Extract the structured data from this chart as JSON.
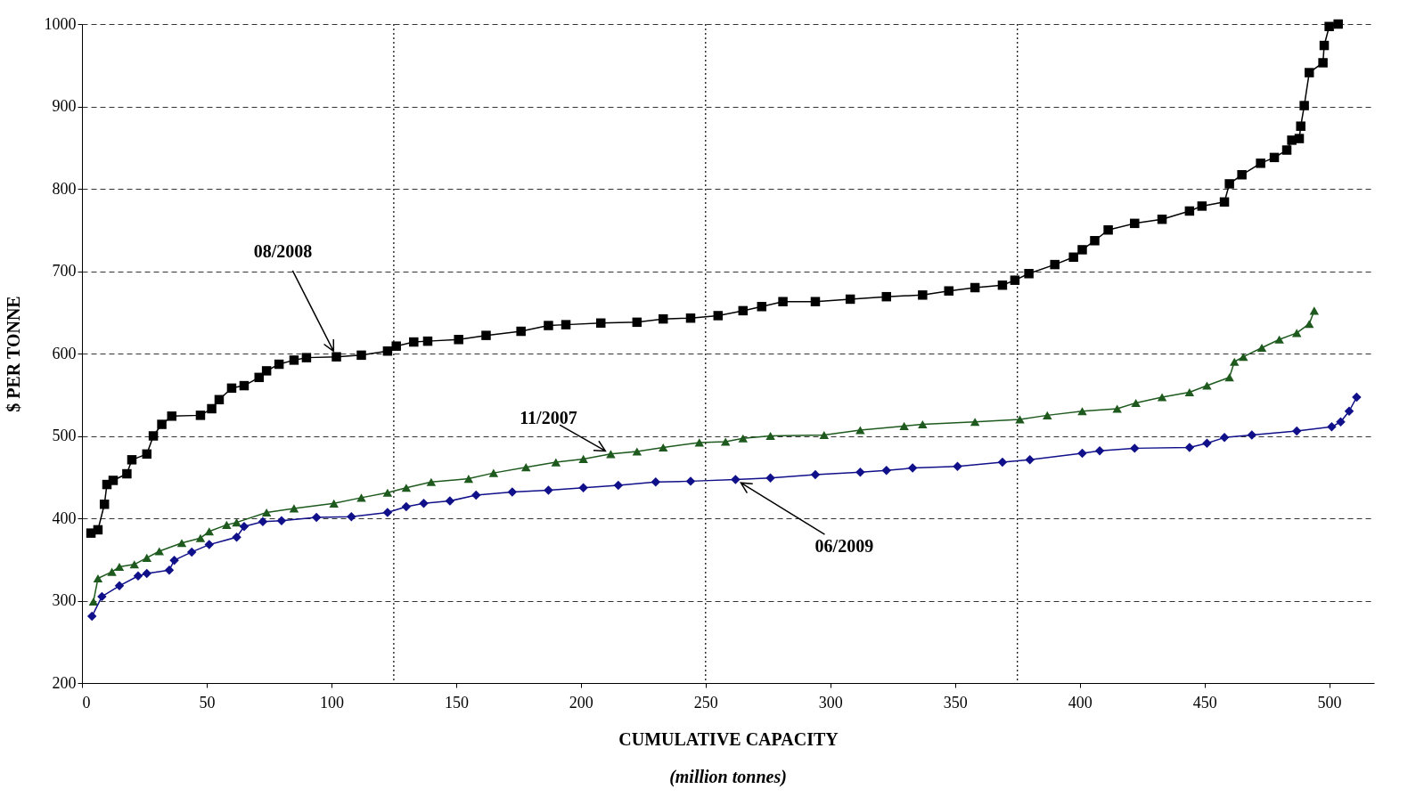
{
  "chart_data": {
    "type": "line",
    "xlabel": "CUMULATIVE CAPACITY",
    "ylabel": "$ PER TONNE",
    "xlim": [
      0,
      518
    ],
    "ylim": [
      200,
      1000
    ],
    "xticks": [
      0,
      50,
      100,
      150,
      200,
      250,
      300,
      350,
      400,
      450,
      500
    ],
    "yticks": [
      200,
      300,
      400,
      500,
      600,
      700,
      800,
      900,
      {
        "value": 1000,
        "label": "1000"
      }
    ],
    "grid": "y",
    "ref_lines": [
      {
        "axis": "x",
        "value": 125,
        "line_style": "dotted",
        "color": "#000000"
      },
      {
        "axis": "x",
        "value": 250,
        "line_style": "dotted",
        "color": "#000000"
      },
      {
        "axis": "x",
        "value": 375,
        "line_style": "dotted",
        "color": "#000000"
      }
    ],
    "annotations": [
      {
        "text": "08/2008",
        "x": 102,
        "y": 596
      },
      {
        "text": "11/2007",
        "x": 212,
        "y": 478
      },
      {
        "text": "06/2009",
        "x": 262,
        "y": 447
      },
      "(million tonnes)"
    ],
    "series": [
      {
        "color": "#000000",
        "marker": "square",
        "x": [
          3.6,
          6.4,
          9,
          10,
          12.5,
          18,
          20,
          26,
          28.6,
          32,
          36,
          47.5,
          52,
          55,
          60,
          65,
          71,
          74,
          79,
          85,
          90,
          102,
          112,
          122.5,
          126,
          133,
          138.6,
          151,
          162,
          176,
          187,
          194,
          208,
          222.5,
          233,
          244,
          255,
          265,
          272.5,
          281,
          294,
          308,
          322.5,
          337,
          347.5,
          358,
          369,
          374,
          379.6,
          390,
          397.5,
          401,
          406,
          411.4,
          422,
          433,
          444,
          449,
          458,
          460,
          465,
          472.5,
          478,
          483,
          485,
          488,
          488.6,
          490,
          492,
          497.5,
          498,
          500,
          503.6
        ],
        "values": [
          382,
          386,
          417,
          441,
          446,
          454,
          471,
          478,
          500,
          514,
          524,
          525,
          533,
          544,
          558,
          561,
          571,
          579,
          587,
          592,
          595,
          596,
          598,
          603,
          609,
          614,
          615,
          617,
          622,
          627,
          634,
          635,
          637,
          638,
          642,
          643,
          646,
          652,
          657,
          663,
          663,
          666,
          669,
          671,
          676,
          680,
          683,
          689,
          697,
          708,
          717,
          726,
          737,
          750,
          758,
          763,
          773,
          779,
          784,
          806,
          817,
          831,
          838,
          847,
          859,
          861,
          876,
          901,
          941,
          953,
          974,
          997,
          1000
        ]
      },
      {
        "color": "#1e5a1e",
        "marker": "triangle",
        "x": [
          4.6,
          6.4,
          12,
          15,
          21,
          26,
          31,
          40,
          47.5,
          51,
          58,
          62,
          74,
          85,
          101,
          112,
          122.5,
          130,
          140,
          155,
          165,
          178,
          190,
          201,
          212,
          222.5,
          233,
          247.5,
          258,
          265,
          276,
          297.5,
          312,
          329.6,
          337,
          358,
          376,
          387,
          401,
          415,
          422.5,
          433,
          444,
          451,
          460,
          462,
          465.6,
          473,
          480,
          487,
          492,
          494
        ],
        "values": [
          299,
          327,
          335,
          341,
          344,
          352,
          360,
          370,
          376,
          384,
          392,
          395,
          407,
          412,
          418,
          425,
          431,
          437,
          444,
          448,
          455,
          462,
          468,
          472,
          478,
          481,
          486,
          492,
          493,
          497,
          500,
          501,
          507,
          512,
          514,
          517,
          520,
          525,
          530,
          533,
          540,
          547,
          553,
          561,
          571,
          590,
          596,
          607,
          617,
          625,
          636,
          652
        ]
      },
      {
        "color": "#10108a",
        "marker": "diamond",
        "x": [
          4,
          8,
          15,
          22.5,
          26,
          35,
          37,
          44,
          51,
          62,
          65,
          72.5,
          80,
          94,
          108,
          122.5,
          130,
          137,
          147.5,
          158,
          172.5,
          187,
          201,
          215,
          230,
          244,
          262,
          276,
          294,
          312,
          322.5,
          333,
          351,
          369,
          380,
          401,
          408,
          422,
          444,
          451,
          458,
          469,
          487,
          501,
          504.6,
          508,
          511
        ],
        "values": [
          281,
          305,
          318,
          330,
          333,
          337,
          349,
          359,
          368,
          377,
          390,
          396,
          397,
          401,
          402,
          407,
          414,
          418,
          421,
          428,
          432,
          434,
          437,
          440,
          444,
          445,
          447,
          449,
          453,
          456,
          458,
          461,
          463,
          468,
          471,
          479,
          482,
          485,
          486,
          491,
          498,
          501,
          506,
          511,
          517,
          530,
          547
        ]
      }
    ]
  }
}
